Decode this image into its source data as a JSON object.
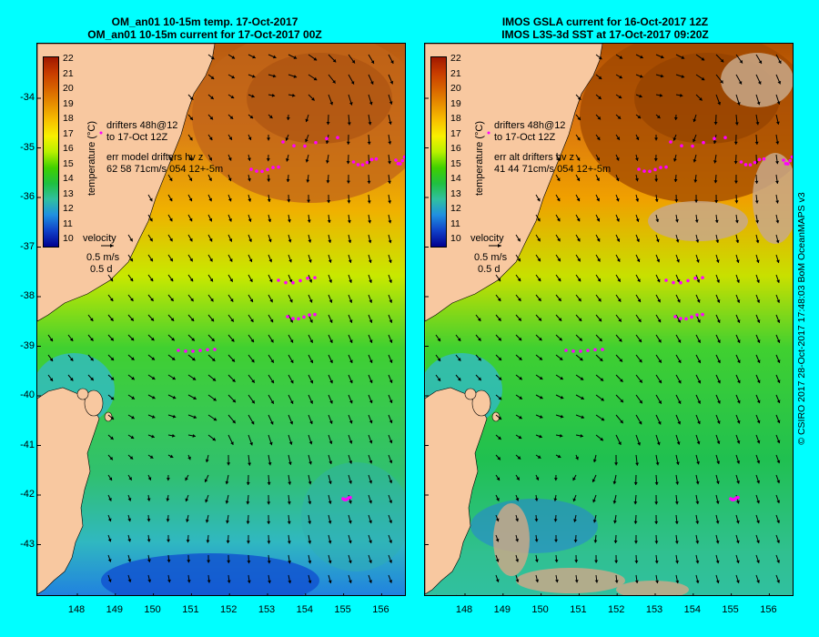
{
  "left_panel": {
    "title_line1": "OM_an01 10-15m temp. 17-Oct-2017",
    "title_line2": "OM_an01 10-15m current for 17-Oct-2017 00Z",
    "drifters_line1": "drifters 48h@12",
    "drifters_line2": "to 17-Oct 12Z",
    "err_line1": "err model drifters hv z",
    "err_line2": "62 58 71cm/s 054 12+-5m",
    "velocity_label": "velocity",
    "velocity_scale": "0.5 m/s",
    "velocity_time": "0.5 d"
  },
  "right_panel": {
    "title_line1": "IMOS GSLA current for 16-Oct-2017 12Z",
    "title_line2": "IMOS L3S-3d SST at 17-Oct-2017 09:20Z",
    "drifters_line1": "drifters 48h@12",
    "drifters_line2": "to 17-Oct 12Z",
    "err_line1": "err alt drifters hv z",
    "err_line2": "41 44 71cm/s 054 12+-5m",
    "velocity_label": "velocity",
    "velocity_scale": "0.5 m/s",
    "velocity_time": "0.5 d"
  },
  "colorbar": {
    "label": "temperature (°C)",
    "ticks": [
      "22",
      "21",
      "20",
      "19",
      "18",
      "17",
      "16",
      "15",
      "14",
      "13",
      "12",
      "11",
      "10"
    ],
    "colors": [
      "#a01800",
      "#c83c00",
      "#d86400",
      "#e89000",
      "#f8c000",
      "#f8f000",
      "#b8f000",
      "#40d000",
      "#20c040",
      "#30c0a0",
      "#2090e0",
      "#1040c8",
      "#000090"
    ]
  },
  "latitude_ticks": [
    "-34",
    "-35",
    "-36",
    "-37",
    "-38",
    "-39",
    "-40",
    "-41",
    "-42",
    "-43"
  ],
  "longitude_ticks": [
    "148",
    "149",
    "150",
    "151",
    "152",
    "153",
    "154",
    "155",
    "156"
  ],
  "credit": "© CSIRO 2017   28-Oct-2017 17:48:03 BoM OceanMAPS v3",
  "colors": {
    "background": "#00ffff",
    "land": "#f8c8a0",
    "drifter": "#ff00ff",
    "cloud": "#c8a888"
  }
}
